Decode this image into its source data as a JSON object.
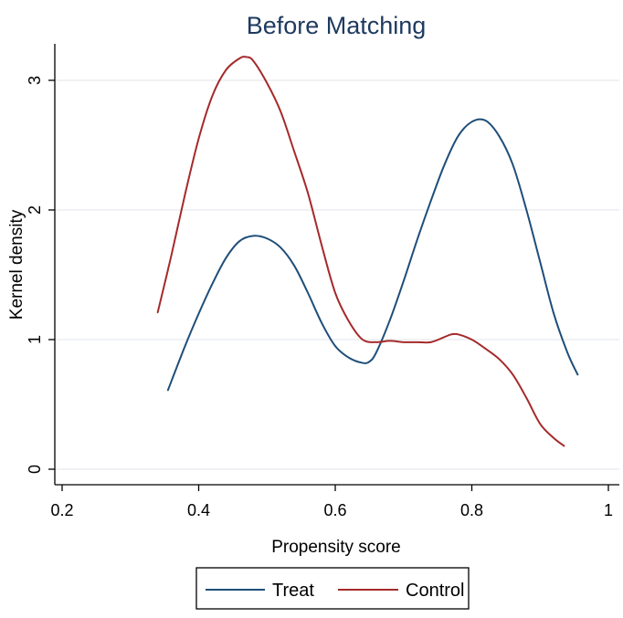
{
  "chart_data": {
    "type": "line",
    "title": "Before Matching",
    "xlabel": "Propensity score",
    "ylabel": "Kernel density",
    "xlim": [
      0.2,
      1
    ],
    "ylim": [
      0,
      3.2
    ],
    "xticks": [
      "0.2",
      "0.4",
      "0.6",
      "0.8",
      "1"
    ],
    "yticks": [
      "0",
      "1",
      "2",
      "3"
    ],
    "grid": "horizontal",
    "legend_position": "bottom",
    "series": [
      {
        "name": "Treat",
        "color": "#1f4e79",
        "x": [
          0.355,
          0.38,
          0.4,
          0.42,
          0.44,
          0.46,
          0.48,
          0.5,
          0.52,
          0.54,
          0.56,
          0.58,
          0.6,
          0.62,
          0.64,
          0.65,
          0.66,
          0.68,
          0.7,
          0.72,
          0.74,
          0.76,
          0.78,
          0.8,
          0.82,
          0.84,
          0.86,
          0.88,
          0.9,
          0.92,
          0.94,
          0.955
        ],
        "y": [
          0.61,
          0.95,
          1.2,
          1.43,
          1.63,
          1.76,
          1.8,
          1.78,
          1.71,
          1.57,
          1.36,
          1.13,
          0.95,
          0.86,
          0.82,
          0.83,
          0.9,
          1.15,
          1.45,
          1.77,
          2.07,
          2.35,
          2.57,
          2.68,
          2.69,
          2.57,
          2.35,
          2.0,
          1.6,
          1.2,
          0.9,
          0.73
        ]
      },
      {
        "name": "Control",
        "color": "#a52a2a",
        "x": [
          0.34,
          0.36,
          0.38,
          0.4,
          0.42,
          0.44,
          0.46,
          0.47,
          0.48,
          0.5,
          0.52,
          0.54,
          0.56,
          0.58,
          0.6,
          0.62,
          0.64,
          0.66,
          0.68,
          0.7,
          0.72,
          0.74,
          0.76,
          0.77,
          0.78,
          0.8,
          0.82,
          0.84,
          0.86,
          0.88,
          0.9,
          0.92,
          0.935
        ],
        "y": [
          1.21,
          1.65,
          2.12,
          2.55,
          2.88,
          3.08,
          3.17,
          3.18,
          3.15,
          2.98,
          2.76,
          2.45,
          2.13,
          1.73,
          1.36,
          1.14,
          1.0,
          0.98,
          0.99,
          0.98,
          0.98,
          0.98,
          1.02,
          1.04,
          1.04,
          1.0,
          0.93,
          0.85,
          0.73,
          0.55,
          0.35,
          0.24,
          0.18
        ]
      }
    ]
  }
}
